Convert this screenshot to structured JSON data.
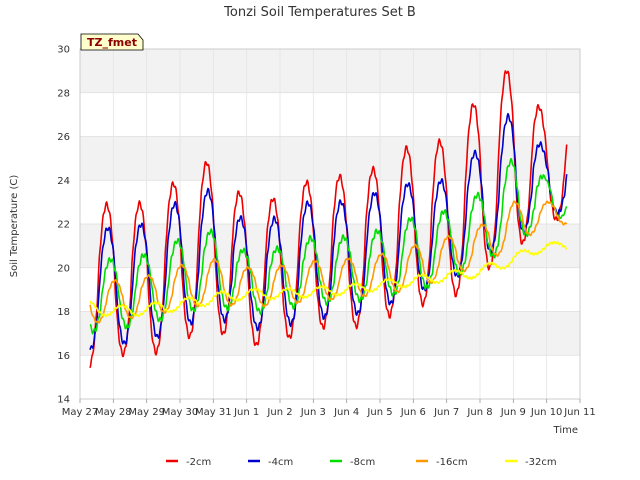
{
  "chart_data": {
    "type": "line",
    "title": "Tonzi Soil Temperatures Set B",
    "xlabel": "Time",
    "ylabel": "Soil Temperature (C)",
    "badge": "TZ_fmet",
    "xlim": [
      0,
      15
    ],
    "ylim": [
      14,
      30
    ],
    "x_ticks": [
      {
        "x": 0,
        "label": "May 27"
      },
      {
        "x": 1,
        "label": "May 28"
      },
      {
        "x": 2,
        "label": "May 29"
      },
      {
        "x": 3,
        "label": "May 30"
      },
      {
        "x": 4,
        "label": "May 31"
      },
      {
        "x": 5,
        "label": "Jun 1"
      },
      {
        "x": 6,
        "label": "Jun 2"
      },
      {
        "x": 7,
        "label": "Jun 3"
      },
      {
        "x": 8,
        "label": "Jun 4"
      },
      {
        "x": 9,
        "label": "Jun 5"
      },
      {
        "x": 10,
        "label": "Jun 6"
      },
      {
        "x": 11,
        "label": "Jun 7"
      },
      {
        "x": 12,
        "label": "Jun 8"
      },
      {
        "x": 13,
        "label": "Jun 9"
      },
      {
        "x": 14,
        "label": "Jun 10"
      },
      {
        "x": 15,
        "label": "Jun 11"
      }
    ],
    "y_ticks": [
      14,
      16,
      18,
      20,
      22,
      24,
      26,
      28,
      30
    ],
    "grid": true,
    "legend_position": "bottom",
    "series": [
      {
        "name": "-2cm",
        "color": "#ee0000",
        "mean": [
          18.7,
          19.6,
          19.4,
          20.4,
          21.1,
          19.7,
          19.9,
          20.7,
          20.7,
          21.1,
          22.0,
          22.1,
          23.8,
          25.0,
          24.5
        ],
        "amp": [
          3.4,
          3.5,
          3.5,
          3.7,
          3.9,
          3.3,
          3.3,
          3.4,
          3.5,
          3.5,
          3.7,
          3.7,
          4.1,
          4.3,
          2.3
        ]
      },
      {
        "name": "-4cm",
        "color": "#0000cc",
        "mean": [
          18.8,
          19.2,
          19.3,
          20.2,
          20.7,
          19.6,
          19.8,
          20.4,
          20.4,
          20.8,
          21.4,
          21.6,
          23.0,
          24.2,
          23.9
        ],
        "amp": [
          2.6,
          2.7,
          2.7,
          2.9,
          2.9,
          2.4,
          2.5,
          2.7,
          2.6,
          2.7,
          2.5,
          2.4,
          2.5,
          3.0,
          1.4
        ]
      },
      {
        "name": "-8cm",
        "color": "#00dd00",
        "mean": [
          18.6,
          18.8,
          19.0,
          19.6,
          20.0,
          19.3,
          19.5,
          19.9,
          19.9,
          20.2,
          20.6,
          21.0,
          21.8,
          23.0,
          23.2
        ],
        "amp": [
          1.6,
          1.6,
          1.6,
          1.7,
          1.7,
          1.4,
          1.4,
          1.5,
          1.5,
          1.5,
          1.7,
          1.6,
          1.6,
          2.0,
          0.9
        ]
      },
      {
        "name": "-16cm",
        "color": "#ff9900",
        "mean": [
          18.3,
          18.5,
          18.7,
          19.1,
          19.4,
          19.1,
          19.2,
          19.4,
          19.5,
          19.7,
          20.0,
          20.5,
          21.0,
          22.0,
          22.5
        ],
        "amp": [
          0.9,
          0.9,
          0.9,
          1.0,
          1.0,
          0.9,
          0.9,
          0.9,
          0.9,
          0.9,
          1.0,
          0.9,
          0.9,
          1.0,
          0.5
        ]
      },
      {
        "name": "-32cm",
        "color": "#ffff00",
        "mean": [
          18.3,
          18.0,
          18.1,
          18.3,
          18.6,
          18.8,
          18.8,
          18.9,
          19.0,
          19.2,
          19.4,
          19.6,
          19.8,
          20.4,
          21.0
        ],
        "amp": [
          0.25,
          0.25,
          0.25,
          0.25,
          0.25,
          0.22,
          0.22,
          0.22,
          0.22,
          0.22,
          0.22,
          0.22,
          0.22,
          0.25,
          0.15
        ]
      }
    ]
  }
}
